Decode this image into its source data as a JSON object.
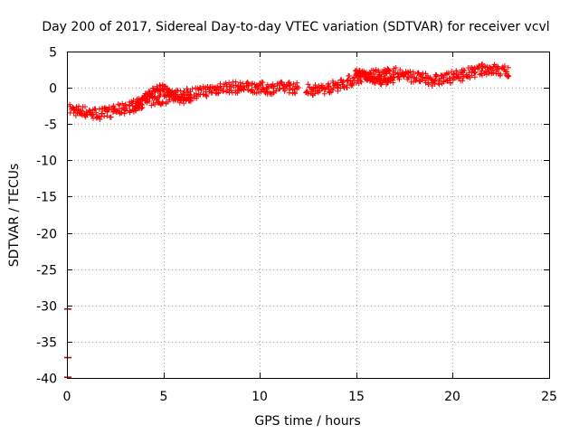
{
  "chart_data": {
    "type": "scatter",
    "title": "Day 200 of 2017, Sidereal Day-to-day VTEC variation (SDTVAR) for receiver vcvl",
    "xlabel": "GPS time / hours",
    "ylabel": "SDTVAR / TECUs",
    "xlim": [
      0,
      25
    ],
    "ylim": [
      -40,
      5
    ],
    "xticks": [
      0,
      5,
      10,
      15,
      20,
      25
    ],
    "yticks": [
      5,
      0,
      -5,
      -10,
      -15,
      -20,
      -25,
      -30,
      -35,
      -40
    ],
    "grid": true,
    "marker": "plus",
    "series": [
      {
        "name": "SDTVAR",
        "color": "#ff0000",
        "trend": [
          [
            0.2,
            -3.0
          ],
          [
            0.6,
            -3.2
          ],
          [
            1.0,
            -3.3
          ],
          [
            1.5,
            -3.6
          ],
          [
            2.0,
            -3.5
          ],
          [
            2.5,
            -3.1
          ],
          [
            3.0,
            -2.8
          ],
          [
            3.5,
            -2.4
          ],
          [
            4.0,
            -2.0
          ],
          [
            4.5,
            -1.7
          ],
          [
            5.0,
            -1.5
          ],
          [
            5.5,
            -1.1
          ],
          [
            6.0,
            -1.0
          ],
          [
            6.5,
            -0.7
          ],
          [
            7.0,
            -0.6
          ],
          [
            7.5,
            -0.3
          ],
          [
            8.0,
            0.0
          ],
          [
            8.5,
            0.1
          ],
          [
            9.0,
            0.0
          ],
          [
            9.5,
            0.1
          ],
          [
            10.0,
            0.0
          ],
          [
            10.5,
            -0.1
          ],
          [
            11.0,
            0.0
          ],
          [
            11.5,
            0.1
          ],
          [
            12.0,
            -0.1
          ],
          [
            12.5,
            -0.2
          ],
          [
            13.0,
            -0.3
          ],
          [
            13.5,
            0.0
          ],
          [
            14.0,
            0.3
          ],
          [
            14.5,
            0.8
          ],
          [
            15.0,
            1.3
          ],
          [
            15.5,
            1.5
          ],
          [
            16.0,
            1.7
          ],
          [
            16.5,
            1.9
          ],
          [
            17.0,
            2.0
          ],
          [
            17.5,
            1.8
          ],
          [
            18.0,
            1.5
          ],
          [
            18.5,
            1.2
          ],
          [
            19.0,
            1.0
          ],
          [
            19.5,
            1.2
          ],
          [
            20.0,
            1.5
          ],
          [
            20.5,
            1.8
          ],
          [
            21.0,
            2.1
          ],
          [
            21.5,
            2.5
          ],
          [
            22.0,
            2.6
          ],
          [
            22.5,
            2.3
          ],
          [
            22.9,
            2.2
          ]
        ],
        "secondary_track": [
          [
            3.5,
            -3.0
          ],
          [
            4.0,
            -1.5
          ],
          [
            4.5,
            -0.3
          ],
          [
            5.0,
            0.0
          ],
          [
            5.5,
            -1.0
          ],
          [
            6.0,
            -1.8
          ],
          [
            6.5,
            -1.2
          ]
        ],
        "loop_track": [
          [
            15.0,
            2.3
          ],
          [
            15.5,
            1.6
          ],
          [
            16.0,
            1.0
          ],
          [
            16.5,
            0.9
          ],
          [
            17.0,
            1.2
          ]
        ],
        "outliers": [
          [
            0.0,
            -30.5
          ],
          [
            0.0,
            -37.2
          ],
          [
            0.0,
            -39.9
          ]
        ]
      }
    ]
  }
}
